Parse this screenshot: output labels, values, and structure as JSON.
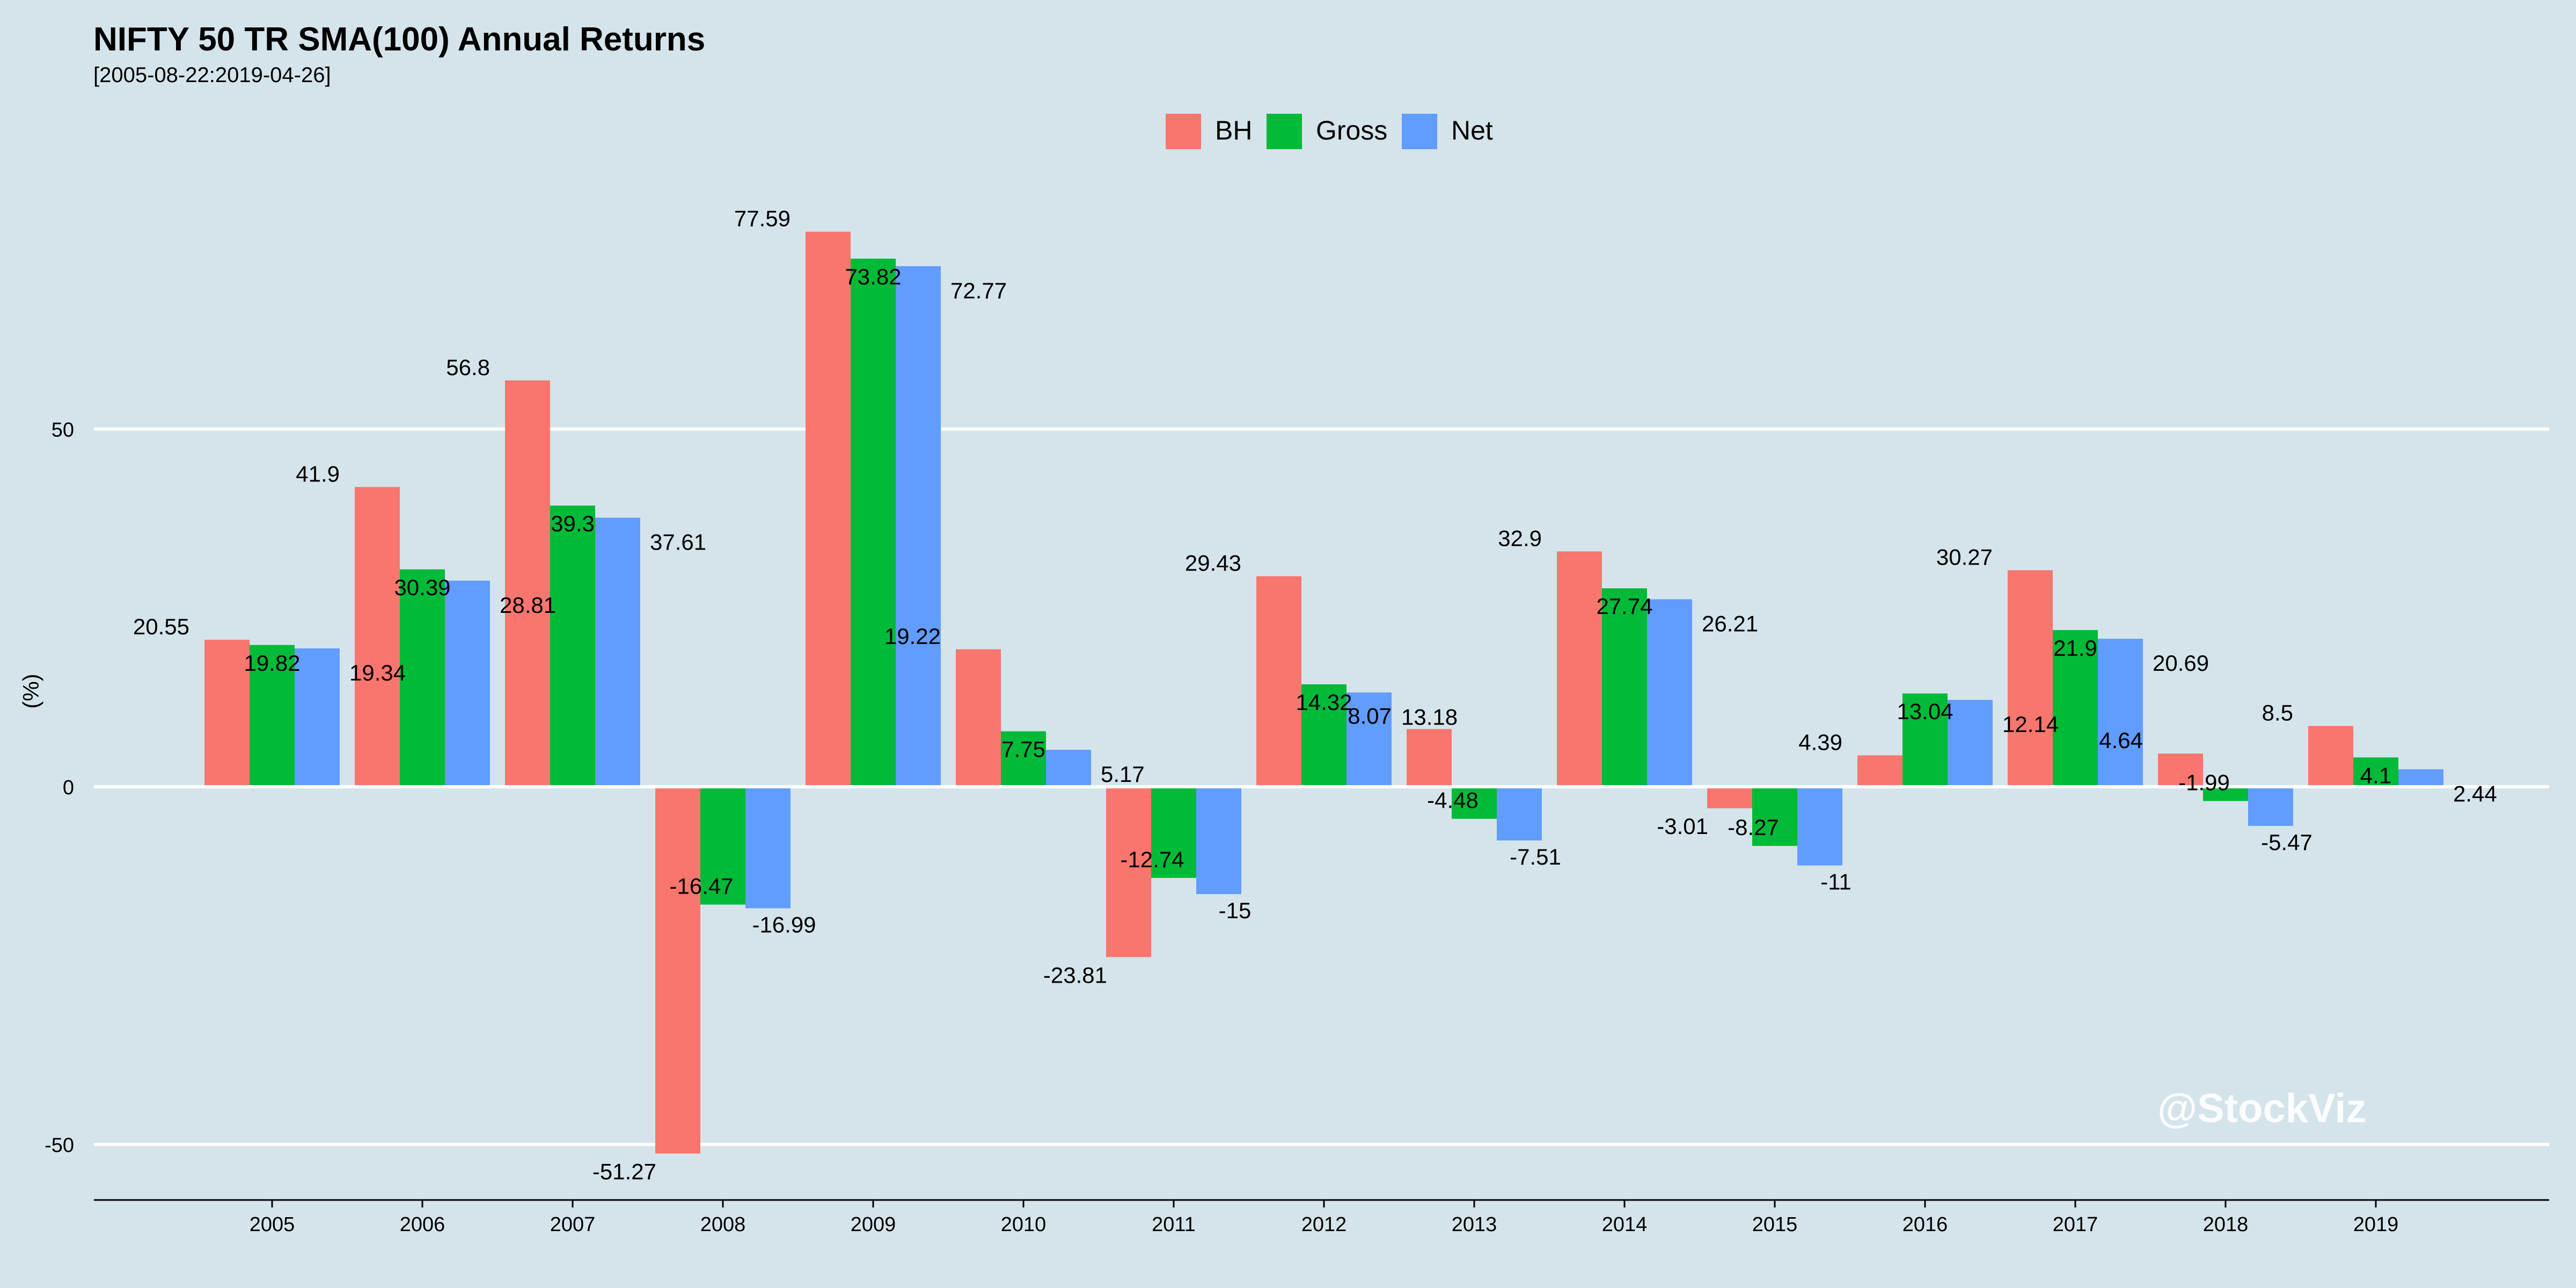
{
  "title": "NIFTY 50 TR SMA(100) Annual Returns",
  "subtitle": "[2005-08-22:2019-04-26]",
  "watermark": "@StockViz",
  "chart_data": {
    "type": "bar",
    "title": "NIFTY 50 TR SMA(100) Annual Returns",
    "subtitle": "[2005-08-22:2019-04-26]",
    "xlabel": "",
    "ylabel": "(%)",
    "ylim": [
      -58,
      80
    ],
    "yticks": [
      -50,
      0,
      50
    ],
    "grid": "horizontal major only",
    "legend_position": "top-center",
    "categories": [
      "2005",
      "2006",
      "2007",
      "2008",
      "2009",
      "2010",
      "2011",
      "2012",
      "2013",
      "2014",
      "2015",
      "2016",
      "2017",
      "2018",
      "2019"
    ],
    "series": [
      {
        "name": "BH",
        "color": "#f8766d",
        "values": [
          20.55,
          41.9,
          56.8,
          -51.27,
          77.59,
          19.22,
          -23.81,
          29.43,
          8.07,
          32.9,
          -3.01,
          4.39,
          30.27,
          4.64,
          8.5
        ],
        "labels": [
          "20.55",
          "41.9",
          "56.8",
          "-51.27",
          "77.59",
          "19.22",
          "-23.81",
          "29.43",
          "8.07",
          "32.9",
          "-3.01",
          "4.39",
          "30.27",
          "4.64",
          "8.5"
        ]
      },
      {
        "name": "Gross",
        "color": "#00ba38",
        "values": [
          19.82,
          30.39,
          39.3,
          -16.47,
          73.82,
          7.75,
          -12.74,
          14.32,
          -4.48,
          27.74,
          -8.27,
          13.04,
          21.9,
          -1.99,
          4.1
        ],
        "labels": [
          "19.82",
          "30.39",
          "39.3",
          "-16.47",
          "73.82",
          "7.75",
          "-12.74",
          "14.32",
          "-4.48",
          "27.74",
          "-8.27",
          "13.04",
          "21.9",
          "-1.99",
          "4.1"
        ]
      },
      {
        "name": "Net",
        "color": "#619cff",
        "values": [
          19.34,
          28.81,
          37.61,
          -16.99,
          72.77,
          5.17,
          -15,
          13.18,
          -7.51,
          26.21,
          -11,
          12.14,
          20.69,
          -5.47,
          2.44
        ],
        "labels": [
          "19.34",
          "28.81",
          "37.61",
          "-16.99",
          "72.77",
          "5.17",
          "-15",
          "13.18",
          "-7.51",
          "26.21",
          "-11",
          "12.14",
          "20.69",
          "-5.47",
          "2.44"
        ]
      }
    ]
  }
}
